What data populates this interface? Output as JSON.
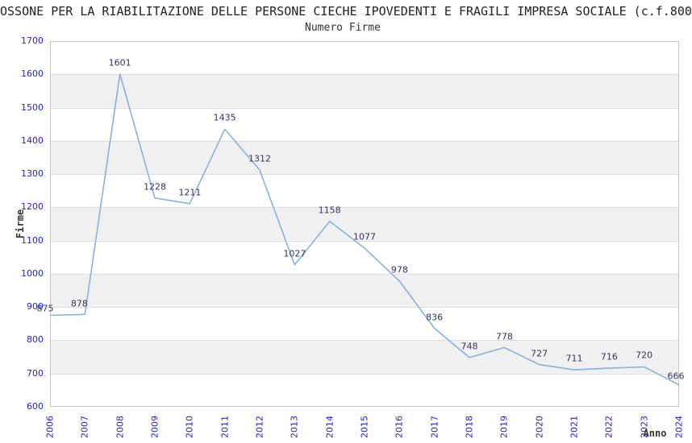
{
  "title": "OSSONE PER LA RIABILITAZIONE DELLE PERSONE CIECHE IPOVEDENTI E FRAGILI IMPRESA SOCIALE (c.f.800",
  "subtitle": "Numero Firme",
  "chart_data": {
    "type": "line",
    "title": "Numero Firme",
    "x": [
      "2006",
      "2007",
      "2008",
      "2009",
      "2010",
      "2011",
      "2012",
      "2013",
      "2014",
      "2015",
      "2016",
      "2017",
      "2018",
      "2019",
      "2020",
      "2021",
      "2022",
      "2023",
      "2024"
    ],
    "values": [
      875,
      878,
      1601,
      1228,
      1211,
      1435,
      1312,
      1027,
      1158,
      1077,
      978,
      836,
      748,
      778,
      727,
      711,
      716,
      720,
      666
    ],
    "xlabel": "Anno",
    "ylabel": "Firme",
    "ylim": [
      600,
      1700
    ],
    "ytick_step": 100,
    "grid": "banded-horizontal",
    "legend": "none",
    "colors": {
      "line": "#85b2e2",
      "tick_label": "#2222cc",
      "data_label": "#333366",
      "band": "#f0f0f0",
      "gridline": "#dcdcdc",
      "plot_border": "#c5c5c5",
      "title_text": "#222222",
      "background": "#ffffff"
    }
  }
}
